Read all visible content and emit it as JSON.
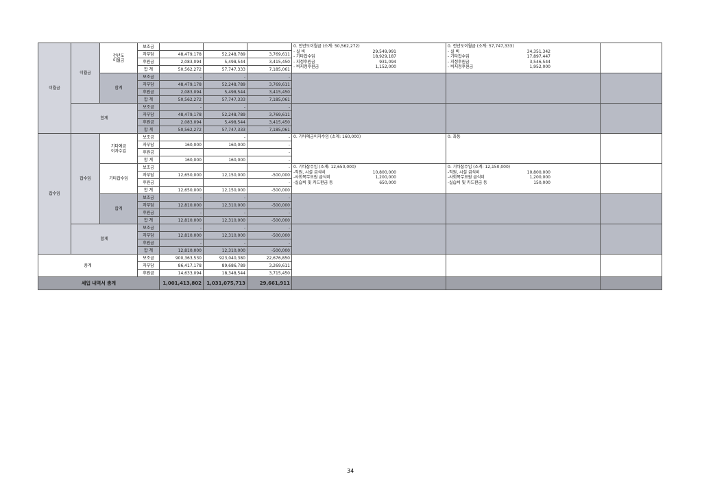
{
  "row_types": [
    "보조금",
    "자부담",
    "후원금",
    "합  계"
  ],
  "sections": [
    {
      "label": "이월금",
      "groups": [
        {
          "sub": "이월금",
          "sub_span": 8,
          "item": "전년도\n이월금",
          "style": "w",
          "values": [
            [
              "",
              "",
              ""
            ],
            [
              "48,479,178",
              "52,248,789",
              "3,769,611"
            ],
            [
              "2,083,094",
              "5,498,544",
              "3,415,450"
            ],
            [
              "50,562,272",
              "57,747,333",
              "7,185,061"
            ]
          ],
          "note_prev": {
            "title": "0. 전년도이월금 (소계: 50,562,272)",
            "lines": [
              [
                "- 실      비",
                "29,549,991"
              ],
              [
                "- 기타잡수입",
                "18,929,187"
              ],
              [
                "- 지정후원금",
                "931,094"
              ],
              [
                "- 비지정후원금",
                "1,152,000"
              ]
            ]
          },
          "note_curr": {
            "title": "0. 전년도이월금 (소계: 57,747,333)",
            "lines": [
              [
                "- 실      비",
                "34,351,342"
              ],
              [
                "- 기타잡수입",
                "17,897,447"
              ],
              [
                "- 지정후원금",
                "3,546,544"
              ],
              [
                "- 비지정후원금",
                "1,952,000"
              ]
            ]
          }
        },
        {
          "item": "합계",
          "style": "g",
          "values": [
            [
              "-",
              "-",
              "-"
            ],
            [
              "48,479,178",
              "52,248,789",
              "3,769,611"
            ],
            [
              "2,083,094",
              "5,498,544",
              "3,415,450"
            ],
            [
              "50,562,272",
              "57,747,333",
              "7,185,061"
            ]
          ]
        },
        {
          "total": "합계",
          "style": "lg",
          "values": [
            [
              "-",
              "-",
              "-"
            ],
            [
              "48,479,178",
              "52,248,789",
              "3,769,611"
            ],
            [
              "2,083,094",
              "5,498,544",
              "3,415,450"
            ],
            [
              "50,562,272",
              "57,747,333",
              "7,185,061"
            ]
          ]
        }
      ]
    },
    {
      "label": "잡수입",
      "groups": [
        {
          "sub": "잡수입",
          "sub_span": 12,
          "item": "기타예금\n이자수입",
          "style": "w",
          "values": [
            [
              "",
              "-",
              "-"
            ],
            [
              "160,000",
              "160,000",
              "-"
            ],
            [
              "",
              "",
              "-"
            ],
            [
              "160,000",
              "160,000",
              "-"
            ]
          ],
          "note_prev": {
            "title": "0. 기타예금이자수입 (소계: 160,000)",
            "lines": []
          },
          "note_curr": {
            "title": "0. 좌동",
            "lines": []
          }
        },
        {
          "item": "기타잡수입",
          "style": "w",
          "values": [
            [
              "",
              "",
              "-"
            ],
            [
              "12,650,000",
              "12,150,000",
              "-500,000"
            ],
            [
              "",
              "",
              "-"
            ],
            [
              "12,650,000",
              "12,150,000",
              "-500,000"
            ]
          ],
          "note_prev": {
            "title": "0. 기타잡수입 (소계: 12,650,000)",
            "lines": [
              [
                "-직원, 시설 급식비",
                "10,800,000"
              ],
              [
                "-사회복무요원 급식비",
                "1,200,000"
              ],
              [
                "-실습비 및 카드환급 등",
                "650,000"
              ]
            ]
          },
          "note_curr": {
            "title": "0. 기타잡수입 (소계: 12,150,000)",
            "lines": [
              [
                "-직원, 시설 급식비",
                "10,800,000"
              ],
              [
                "-사회복무요원 급식비",
                "1,200,000"
              ],
              [
                "-실습비 및 카드환급 등",
                "150,000"
              ]
            ]
          }
        },
        {
          "item": "합계",
          "style": "g",
          "values": [
            [
              "-",
              "-",
              "-"
            ],
            [
              "12,810,000",
              "12,310,000",
              "-500,000"
            ],
            [
              "-",
              "-",
              "-"
            ],
            [
              "12,810,000",
              "12,310,000",
              "-500,000"
            ]
          ]
        },
        {
          "total": "합계",
          "style": "lg",
          "values": [
            [
              "-",
              "-",
              "-"
            ],
            [
              "12,810,000",
              "12,310,000",
              "-500,000"
            ],
            [
              "-",
              "-",
              "-"
            ],
            [
              "12,810,000",
              "12,310,000",
              "-500,000"
            ]
          ]
        }
      ]
    }
  ],
  "grand_section": {
    "label": "총계",
    "values": [
      [
        "900,363,530",
        "923,040,380",
        "22,676,850"
      ],
      [
        "86,417,178",
        "89,686,789",
        "3,269,611"
      ],
      [
        "14,633,094",
        "18,348,544",
        "3,715,450"
      ]
    ]
  },
  "grand_total": {
    "label": "세입 내역서 총계",
    "values": [
      "1,001,413,802",
      "1,031,075,713",
      "29,661,911"
    ]
  },
  "page_number": "34"
}
